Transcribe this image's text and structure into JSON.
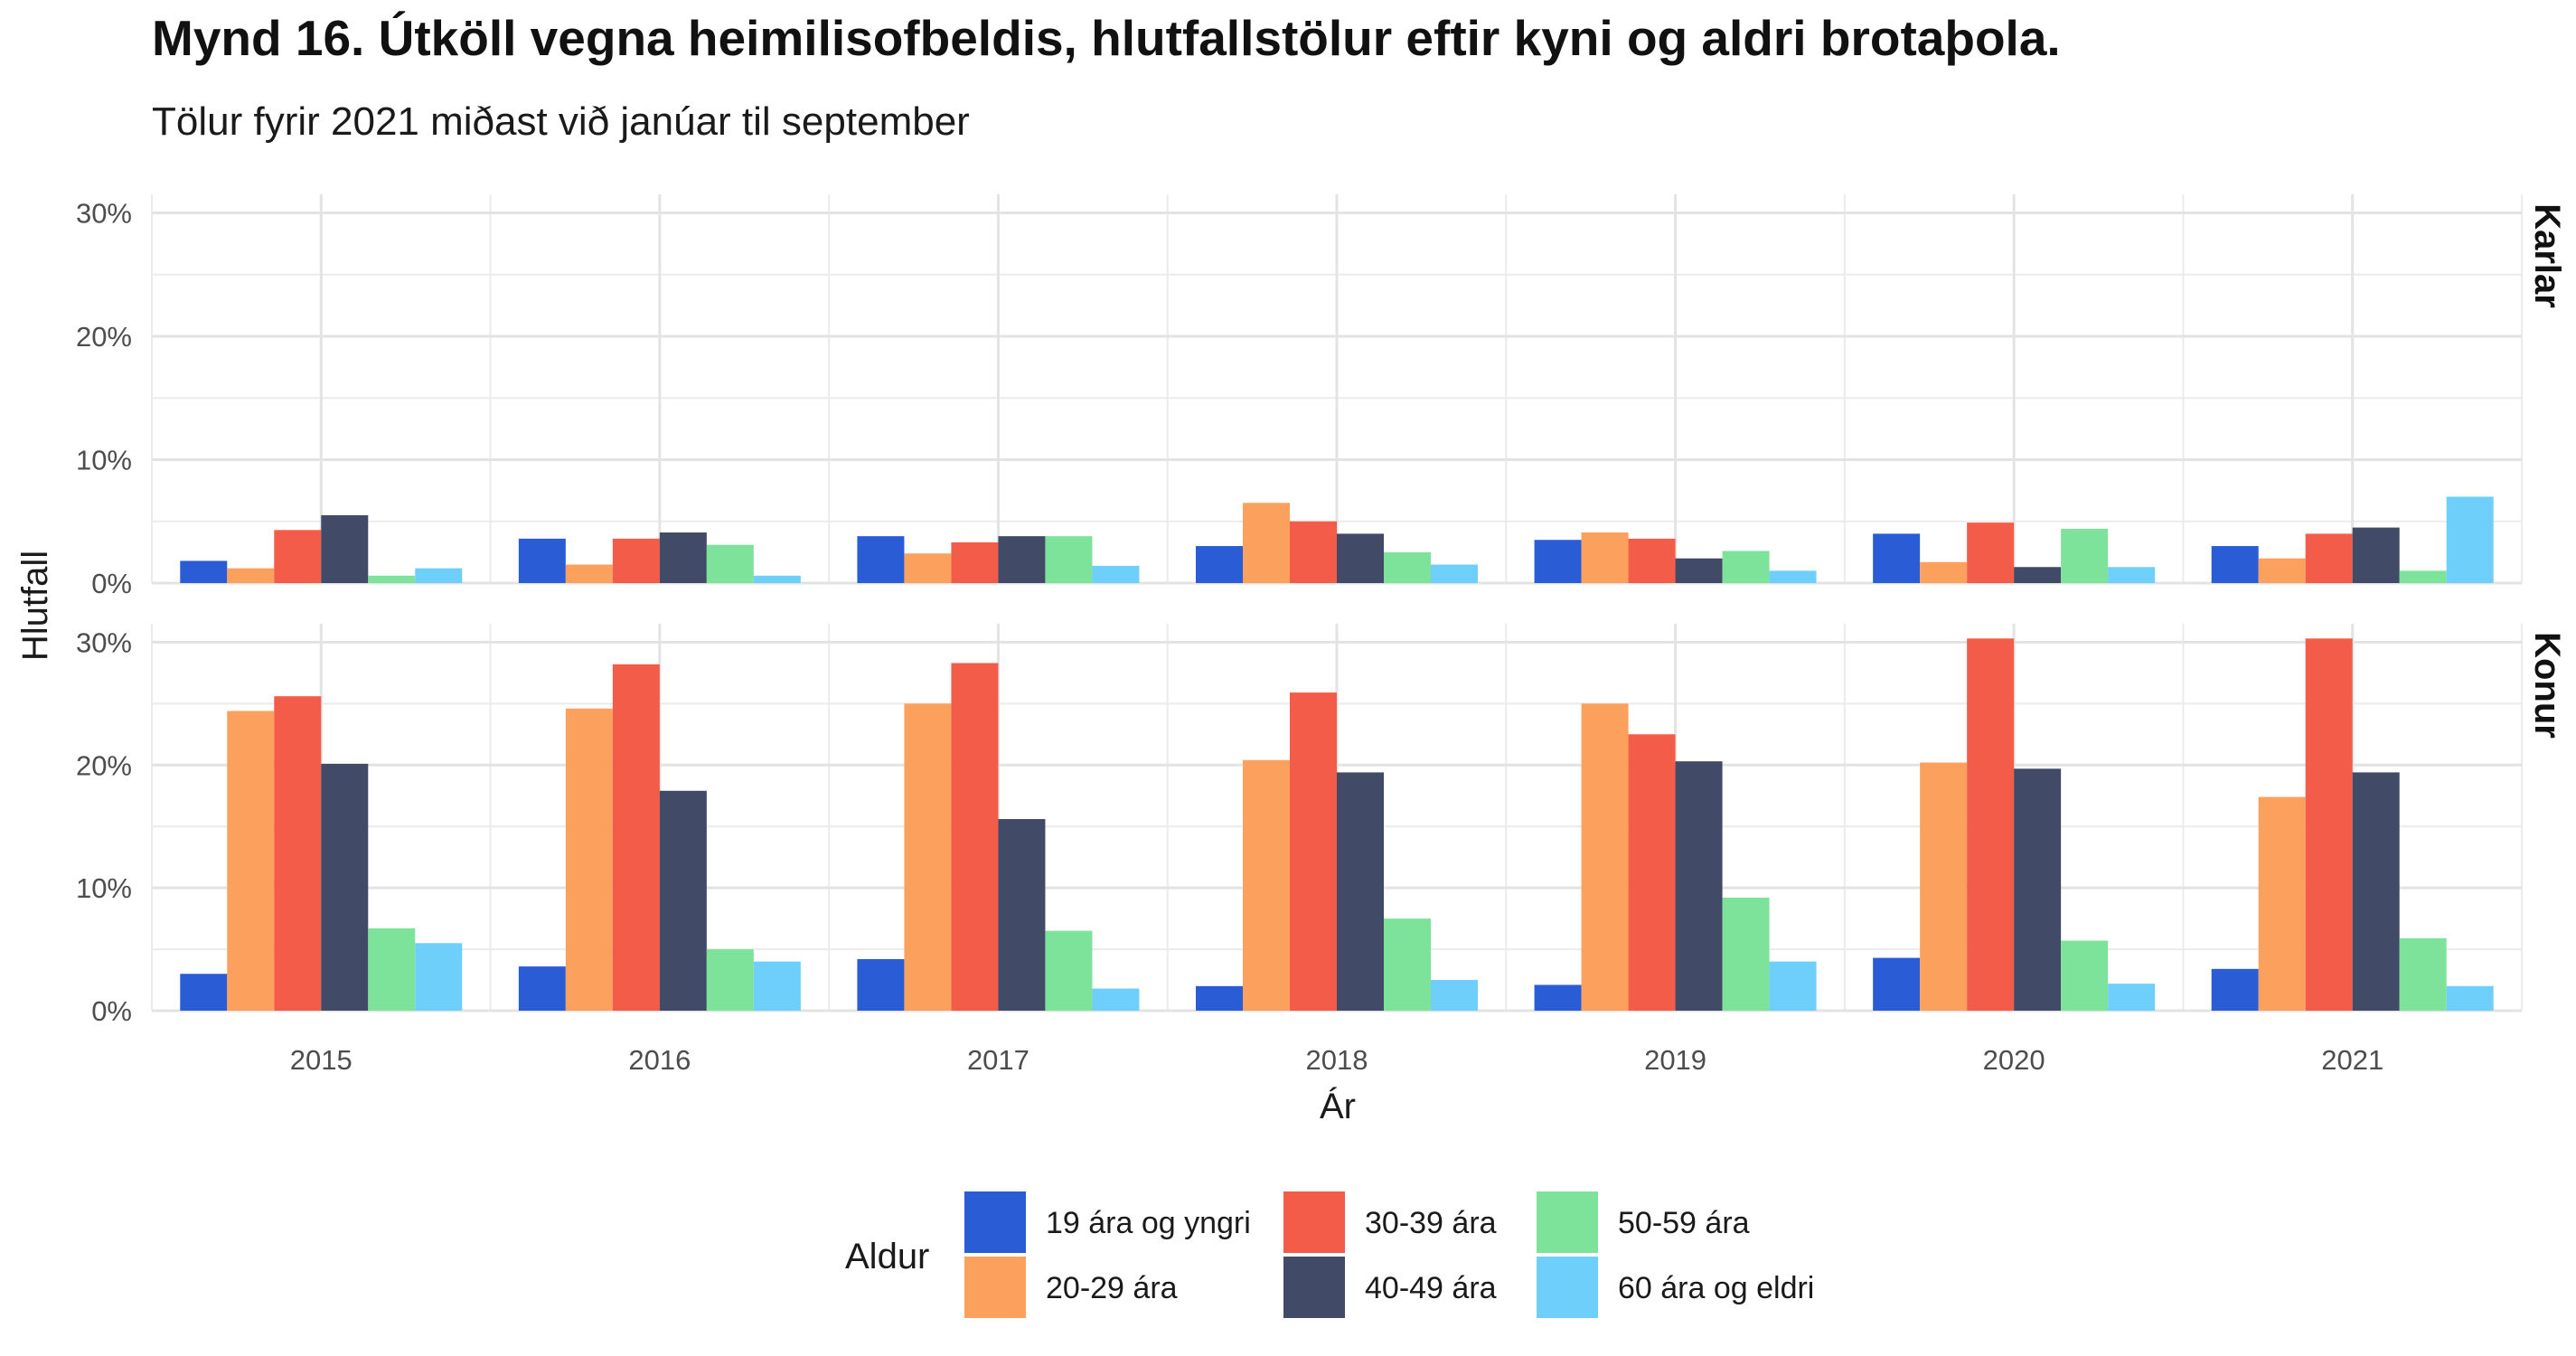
{
  "title": "Mynd 16. Útköll vegna heimilisofbeldis, hlutfallstölur eftir kyni og aldri brotaþola.",
  "subtitle": "Tölur fyrir 2021 miðast við janúar til september",
  "chart_data": {
    "type": "bar",
    "xlabel": "Ár",
    "ylabel": "Hlutfall",
    "ylim": [
      0,
      30
    ],
    "y_ticks": [
      "0%",
      "10%",
      "20%",
      "30%"
    ],
    "grid": true,
    "legend_title": "Aldur",
    "legend_position": "bottom",
    "categories": [
      "2015",
      "2016",
      "2017",
      "2018",
      "2019",
      "2020",
      "2021"
    ],
    "series_meta": [
      {
        "name": "19 ára og yngri",
        "color": "#2a5cd6"
      },
      {
        "name": "20-29 ára",
        "color": "#fca05e"
      },
      {
        "name": "30-39 ára",
        "color": "#f25c48"
      },
      {
        "name": "40-49 ára",
        "color": "#414a67"
      },
      {
        "name": "50-59 ára",
        "color": "#7ee39a"
      },
      {
        "name": "60 ára og eldri",
        "color": "#6fcffb"
      }
    ],
    "panels": [
      {
        "label": "Karlar",
        "series": [
          {
            "name": "19 ára og yngri",
            "values": [
              1.8,
              3.6,
              3.8,
              3.0,
              3.5,
              4.0,
              3.0
            ]
          },
          {
            "name": "20-29 ára",
            "values": [
              1.2,
              1.5,
              2.4,
              6.5,
              4.1,
              1.7,
              2.0
            ]
          },
          {
            "name": "30-39 ára",
            "values": [
              4.3,
              3.6,
              3.3,
              5.0,
              3.6,
              4.9,
              4.0
            ]
          },
          {
            "name": "40-49 ára",
            "values": [
              5.5,
              4.1,
              3.8,
              4.0,
              2.0,
              1.3,
              4.5
            ]
          },
          {
            "name": "50-59 ára",
            "values": [
              0.6,
              3.1,
              3.8,
              2.5,
              2.6,
              4.4,
              1.0
            ]
          },
          {
            "name": "60 ára og eldri",
            "values": [
              1.2,
              0.6,
              1.4,
              1.5,
              1.0,
              1.3,
              7.0
            ]
          }
        ]
      },
      {
        "label": "Konur",
        "series": [
          {
            "name": "19 ára og yngri",
            "values": [
              3.0,
              3.6,
              4.2,
              2.0,
              2.1,
              4.3,
              3.4
            ]
          },
          {
            "name": "20-29 ára",
            "values": [
              24.4,
              24.6,
              25.0,
              20.4,
              25.0,
              20.2,
              17.4
            ]
          },
          {
            "name": "30-39 ára",
            "values": [
              25.6,
              28.2,
              28.3,
              25.9,
              22.5,
              30.3,
              30.3
            ]
          },
          {
            "name": "40-49 ára",
            "values": [
              20.1,
              17.9,
              15.6,
              19.4,
              20.3,
              19.7,
              19.4
            ]
          },
          {
            "name": "50-59 ára",
            "values": [
              6.7,
              5.0,
              6.5,
              7.5,
              9.2,
              5.7,
              5.9
            ]
          },
          {
            "name": "60 ára og eldri",
            "values": [
              5.5,
              4.0,
              1.8,
              2.5,
              4.0,
              2.2,
              2.0
            ]
          }
        ]
      }
    ]
  }
}
